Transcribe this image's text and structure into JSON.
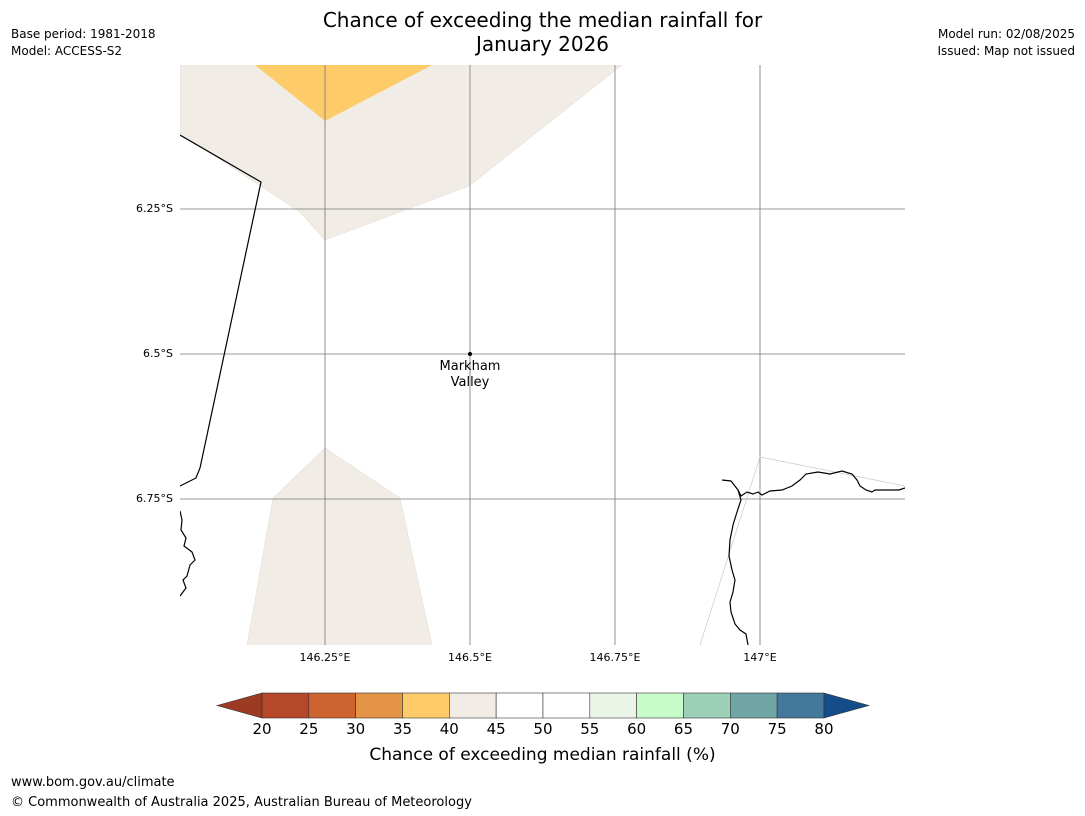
{
  "header": {
    "title_line1": "Chance of exceeding the median rainfall for",
    "title_line2": "January 2026",
    "base_period": "Base period: 1981-2018",
    "model": "Model: ACCESS-S2",
    "model_run": "Model run: 02/08/2025",
    "issued": "Issued: Map not issued"
  },
  "map": {
    "lat_labels": [
      "6.25°S",
      "6.5°S",
      "6.75°S"
    ],
    "lon_labels": [
      "146.25°E",
      "146.5°E",
      "146.75°E",
      "147°E"
    ],
    "place": {
      "name_line1": "Markham",
      "name_line2": "Valley"
    }
  },
  "colorbar": {
    "ticks": [
      "20",
      "25",
      "30",
      "35",
      "40",
      "45",
      "50",
      "55",
      "60",
      "65",
      "70",
      "75",
      "80"
    ],
    "colors": [
      "#9c3b22",
      "#b5472a",
      "#cd6430",
      "#e39444",
      "#fdcb68",
      "#f1ece6",
      "#ffffff",
      "#ffffff",
      "#eaf5e8",
      "#c7fbc7",
      "#9cd0b8",
      "#6fa5a5",
      "#42789a",
      "#154d88"
    ],
    "label": "Chance of exceeding median rainfall (%)"
  },
  "footer": {
    "url": "www.bom.gov.au/climate",
    "copyright": "© Commonwealth of Australia 2025, Australian Bureau of Meteorology"
  }
}
